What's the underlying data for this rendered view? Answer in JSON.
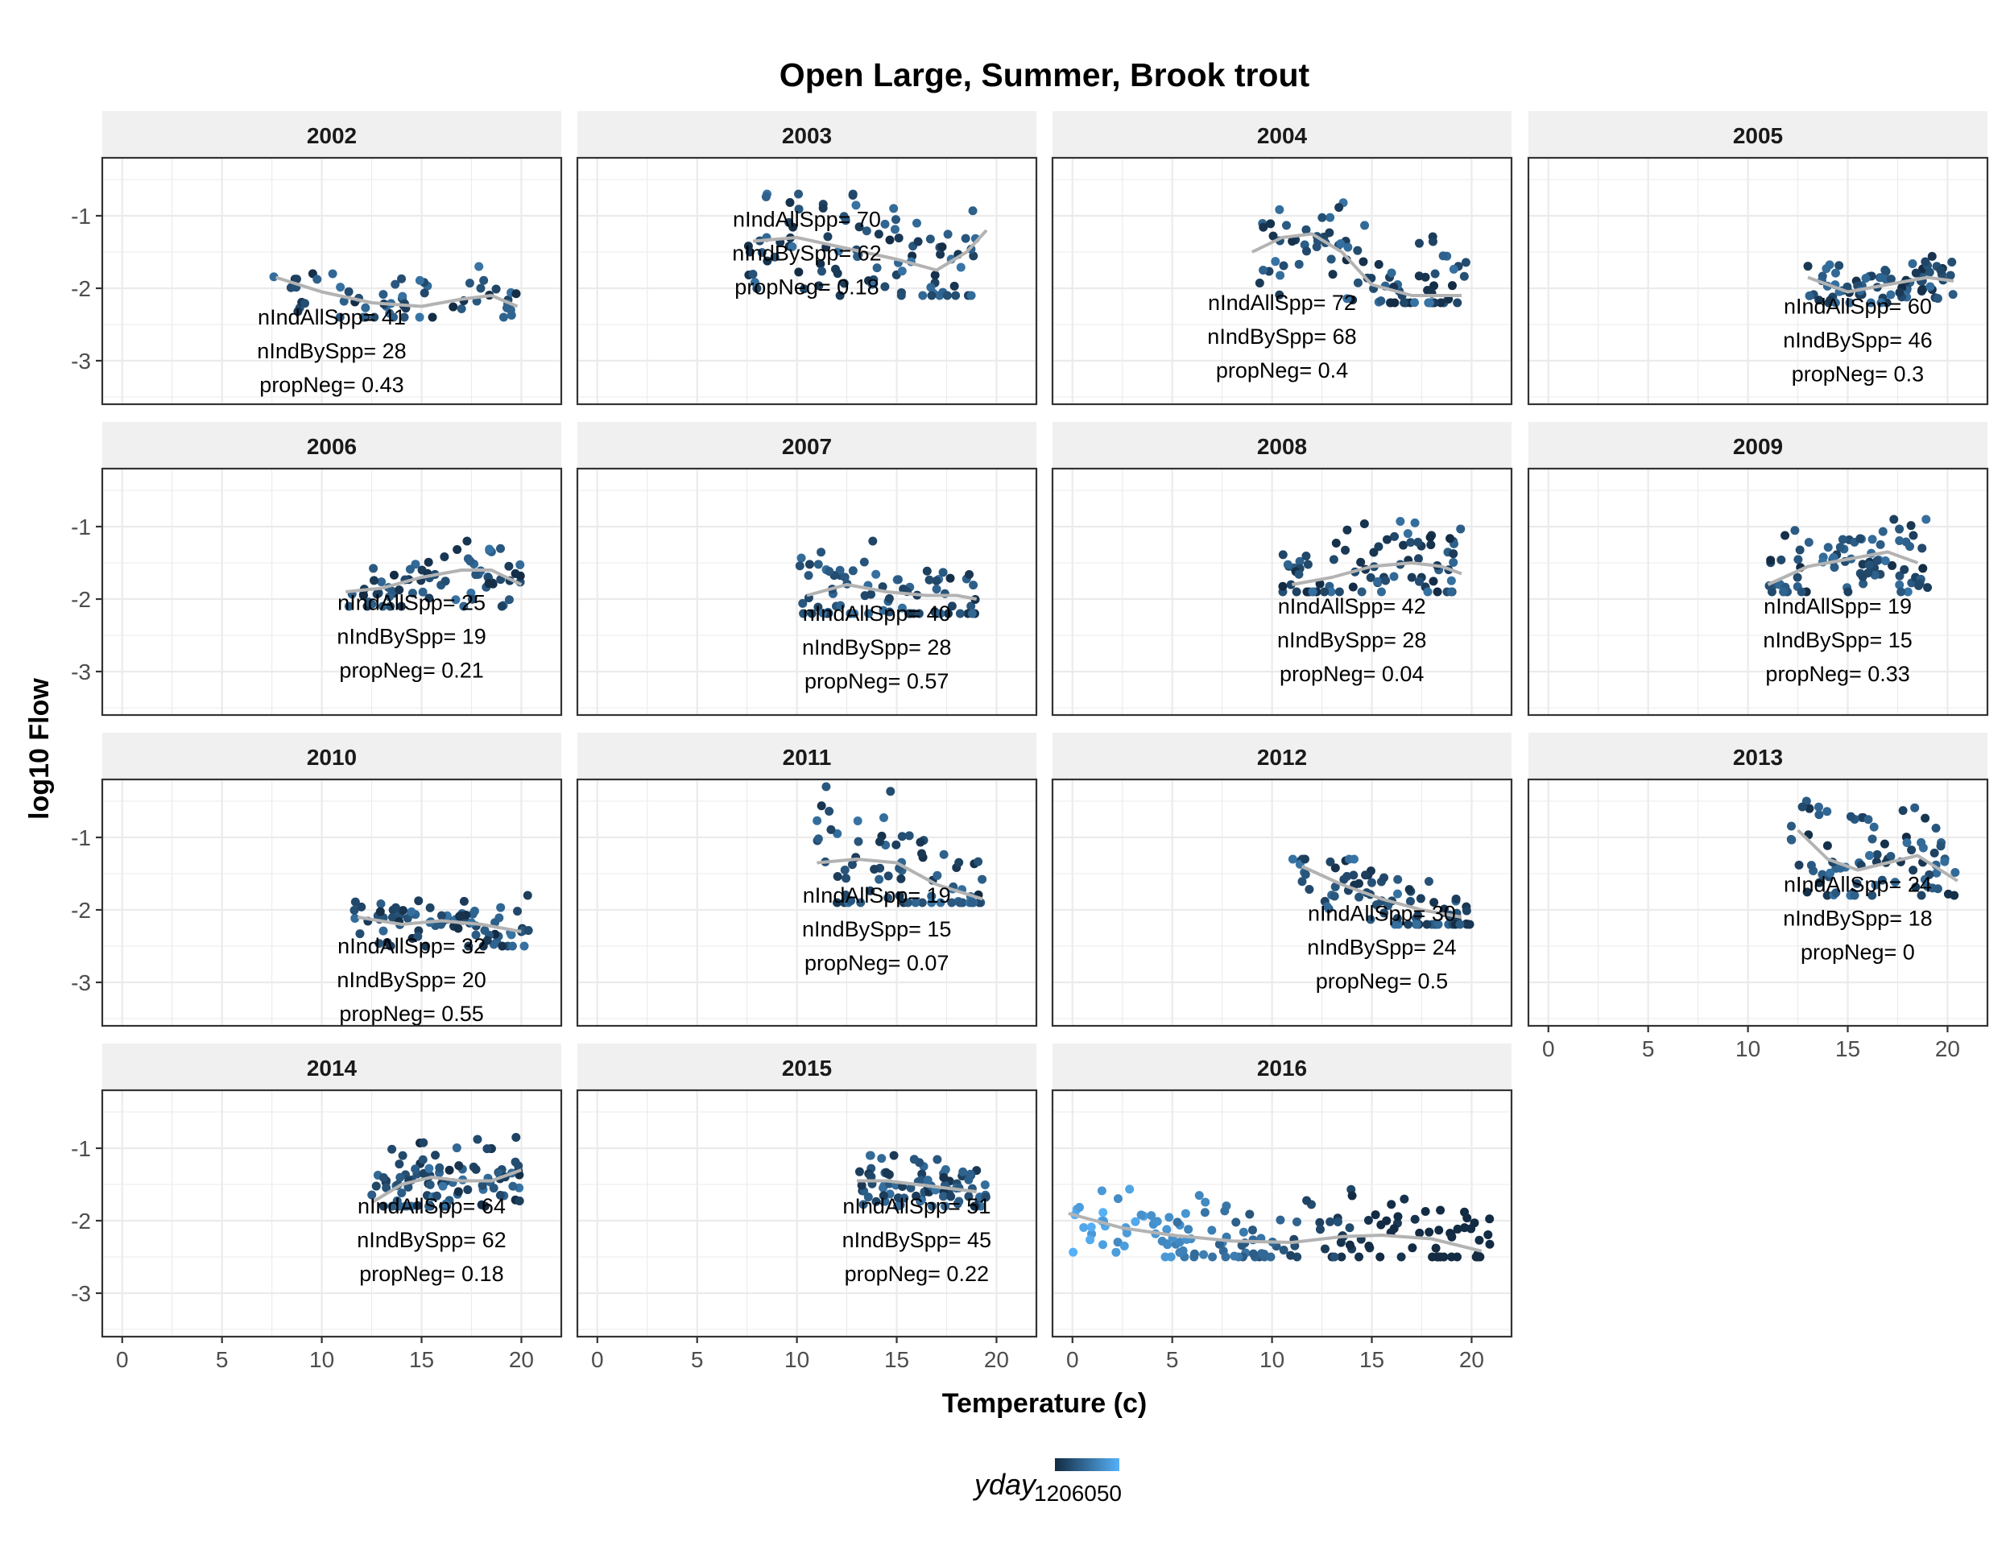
{
  "chart_data": {
    "type": "scatter",
    "title": "Open Large, Summer, Brook trout",
    "xlabel": "Temperature (c)",
    "ylabel": "log10 Flow",
    "xlim": [
      -1,
      22
    ],
    "ylim": [
      -3.6,
      -0.2
    ],
    "x_ticks": [
      0,
      5,
      10,
      15,
      20
    ],
    "y_ticks": [
      -1,
      -2,
      -3
    ],
    "grid": true,
    "legend": {
      "title": "yday",
      "position": "bottom",
      "labels": [
        "1",
        "2",
        "2",
        "6",
        "0",
        "5",
        "0",
        "0",
        "6",
        "0",
        "0"
      ],
      "label_text": "1206050",
      "colors": [
        "#132B43",
        "#56B1F7"
      ]
    },
    "colors": {
      "point_low": "#132B43",
      "point_high": "#56B1F7",
      "smooth": "#b3b3b3",
      "strip": "#f0f0f0",
      "grid": "#ebebeb",
      "panel_border": "#333333"
    },
    "panels": [
      {
        "year": "2002",
        "nIndAllSpp": "nIndAllSpp= 41",
        "nIndBySpp": "nIndBySpp= 28",
        "propNeg": "propNeg= 0.43",
        "label_x": 10.5,
        "label_y": -2.5,
        "cloud": {
          "xmin": 7.5,
          "xmax": 20,
          "ymin": -2.4,
          "ymax": -1.7,
          "n": 60
        },
        "smooth": [
          [
            7.7,
            -1.85
          ],
          [
            10,
            -2.05
          ],
          [
            12.5,
            -2.2
          ],
          [
            15,
            -2.25
          ],
          [
            17,
            -2.15
          ],
          [
            18.5,
            -2.1
          ],
          [
            19.8,
            -2.25
          ]
        ]
      },
      {
        "year": "2003",
        "nIndAllSpp": "nIndAllSpp= 70",
        "nIndBySpp": "nIndBySpp= 62",
        "propNeg": "propNeg= 0.18",
        "label_x": 10.5,
        "label_y": -1.15,
        "cloud": {
          "xmin": 7.5,
          "xmax": 19.5,
          "ymin": -2.1,
          "ymax": -0.7,
          "n": 95
        },
        "smooth": [
          [
            7.8,
            -1.35
          ],
          [
            10,
            -1.3
          ],
          [
            12.5,
            -1.45
          ],
          [
            15,
            -1.6
          ],
          [
            17,
            -1.75
          ],
          [
            18.5,
            -1.5
          ],
          [
            19.5,
            -1.2
          ]
        ]
      },
      {
        "year": "2004",
        "nIndAllSpp": "nIndAllSpp= 72",
        "nIndBySpp": "nIndBySpp= 68",
        "propNeg": "propNeg= 0.4",
        "label_x": 10.5,
        "label_y": -2.3,
        "cloud": {
          "xmin": 9,
          "xmax": 20,
          "ymin": -2.2,
          "ymax": -0.8,
          "n": 90
        },
        "smooth": [
          [
            9,
            -1.5
          ],
          [
            10.5,
            -1.3
          ],
          [
            12,
            -1.25
          ],
          [
            13.5,
            -1.5
          ],
          [
            15,
            -1.95
          ],
          [
            17,
            -2.1
          ],
          [
            19.5,
            -2.1
          ]
        ]
      },
      {
        "year": "2005",
        "nIndAllSpp": "nIndAllSpp= 60",
        "nIndBySpp": "nIndBySpp= 46",
        "propNeg": "propNeg= 0.3",
        "label_x": 15.5,
        "label_y": -2.35,
        "cloud": {
          "xmin": 13,
          "xmax": 20.5,
          "ymin": -2.2,
          "ymax": -1.55,
          "n": 80
        },
        "smooth": [
          [
            13,
            -1.85
          ],
          [
            15,
            -2.05
          ],
          [
            17,
            -1.95
          ],
          [
            19,
            -1.85
          ],
          [
            20.3,
            -1.9
          ]
        ]
      },
      {
        "year": "2006",
        "nIndAllSpp": "nIndAllSpp= 25",
        "nIndBySpp": "nIndBySpp= 19",
        "propNeg": "propNeg= 0.21",
        "label_x": 14.5,
        "label_y": -2.15,
        "cloud": {
          "xmin": 11,
          "xmax": 20,
          "ymin": -2.1,
          "ymax": -1.2,
          "n": 70
        },
        "smooth": [
          [
            11.2,
            -1.9
          ],
          [
            13,
            -1.85
          ],
          [
            15,
            -1.7
          ],
          [
            17,
            -1.6
          ],
          [
            18.5,
            -1.6
          ],
          [
            20,
            -1.8
          ]
        ]
      },
      {
        "year": "2007",
        "nIndAllSpp": "nIndAllSpp= 40",
        "nIndBySpp": "nIndBySpp= 28",
        "propNeg": "propNeg= 0.57",
        "label_x": 14,
        "label_y": -2.3,
        "cloud": {
          "xmin": 10,
          "xmax": 19,
          "ymin": -2.2,
          "ymax": -1.2,
          "n": 75
        },
        "smooth": [
          [
            10.5,
            -1.95
          ],
          [
            12.5,
            -1.8
          ],
          [
            14.5,
            -1.9
          ],
          [
            16.5,
            -1.95
          ],
          [
            18,
            -1.95
          ],
          [
            19,
            -2.0
          ]
        ]
      },
      {
        "year": "2008",
        "nIndAllSpp": "nIndAllSpp= 42",
        "nIndBySpp": "nIndBySpp= 28",
        "propNeg": "propNeg= 0.04",
        "label_x": 14,
        "label_y": -2.2,
        "cloud": {
          "xmin": 10.5,
          "xmax": 19.5,
          "ymin": -1.9,
          "ymax": -0.8,
          "n": 80
        },
        "smooth": [
          [
            11,
            -1.8
          ],
          [
            13,
            -1.7
          ],
          [
            15,
            -1.55
          ],
          [
            17,
            -1.5
          ],
          [
            18.5,
            -1.55
          ],
          [
            19.5,
            -1.65
          ]
        ]
      },
      {
        "year": "2009",
        "nIndAllSpp": "nIndAllSpp= 19",
        "nIndBySpp": "nIndBySpp= 15",
        "propNeg": "propNeg= 0.33",
        "label_x": 14.5,
        "label_y": -2.2,
        "cloud": {
          "xmin": 11,
          "xmax": 19,
          "ymin": -1.9,
          "ymax": -0.9,
          "n": 80
        },
        "smooth": [
          [
            11,
            -1.8
          ],
          [
            13,
            -1.55
          ],
          [
            15,
            -1.45
          ],
          [
            17,
            -1.35
          ],
          [
            18.5,
            -1.5
          ]
        ]
      },
      {
        "year": "2010",
        "nIndAllSpp": "nIndAllSpp= 32",
        "nIndBySpp": "nIndBySpp= 20",
        "propNeg": "propNeg= 0.55",
        "label_x": 14.5,
        "label_y": -2.6,
        "cloud": {
          "xmin": 11.5,
          "xmax": 20.5,
          "ymin": -2.5,
          "ymax": -1.8,
          "n": 80
        },
        "smooth": [
          [
            11.8,
            -2.1
          ],
          [
            14,
            -2.2
          ],
          [
            16,
            -2.15
          ],
          [
            18,
            -2.2
          ],
          [
            20,
            -2.3
          ]
        ]
      },
      {
        "year": "2011",
        "nIndAllSpp": "nIndAllSpp= 19",
        "nIndBySpp": "nIndBySpp= 15",
        "propNeg": "propNeg= 0.07",
        "label_x": 14,
        "label_y": -1.9,
        "cloud": {
          "xmin": 11,
          "xmax": 19.5,
          "ymin": -1.9,
          "ymax": -0.3,
          "n": 75
        },
        "smooth": [
          [
            11,
            -1.35
          ],
          [
            13,
            -1.3
          ],
          [
            15,
            -1.35
          ],
          [
            17,
            -1.65
          ],
          [
            19.3,
            -1.85
          ]
        ]
      },
      {
        "year": "2012",
        "nIndAllSpp": "nIndAllSpp= 30",
        "nIndBySpp": "nIndBySpp= 24",
        "propNeg": "propNeg= 0.5",
        "label_x": 15.5,
        "label_y": -2.15,
        "cloud": {
          "xmin": 11,
          "xmax": 20,
          "ymin": -2.2,
          "ymax": -1.3,
          "n": 80
        },
        "smooth": [
          [
            11.5,
            -1.4
          ],
          [
            13.5,
            -1.65
          ],
          [
            15.5,
            -1.85
          ],
          [
            17.5,
            -2.0
          ],
          [
            19.5,
            -2.1
          ]
        ]
      },
      {
        "year": "2013",
        "nIndAllSpp": "nIndAllSpp= 24",
        "nIndBySpp": "nIndBySpp= 18",
        "propNeg": "propNeg= 0",
        "label_x": 15.5,
        "label_y": -1.75,
        "cloud": {
          "xmin": 12,
          "xmax": 20.5,
          "ymin": -1.8,
          "ymax": -0.5,
          "n": 80
        },
        "smooth": [
          [
            12.5,
            -0.9
          ],
          [
            14,
            -1.3
          ],
          [
            15.5,
            -1.45
          ],
          [
            17,
            -1.35
          ],
          [
            18.5,
            -1.25
          ],
          [
            20.5,
            -1.6
          ]
        ]
      },
      {
        "year": "2014",
        "nIndAllSpp": "nIndAllSpp= 64",
        "nIndBySpp": "nIndBySpp= 62",
        "propNeg": "propNeg= 0.18",
        "label_x": 15.5,
        "label_y": -1.9,
        "cloud": {
          "xmin": 12.5,
          "xmax": 20,
          "ymin": -1.8,
          "ymax": -0.85,
          "n": 95
        },
        "smooth": [
          [
            12.5,
            -1.75
          ],
          [
            14,
            -1.5
          ],
          [
            15.5,
            -1.4
          ],
          [
            17,
            -1.45
          ],
          [
            18.5,
            -1.45
          ],
          [
            20,
            -1.3
          ]
        ]
      },
      {
        "year": "2015",
        "nIndAllSpp": "nIndAllSpp= 51",
        "nIndBySpp": "nIndBySpp= 45",
        "propNeg": "propNeg= 0.22",
        "label_x": 16,
        "label_y": -1.9,
        "cloud": {
          "xmin": 13,
          "xmax": 19.5,
          "ymin": -1.8,
          "ymax": -1.1,
          "n": 85
        },
        "smooth": [
          [
            13,
            -1.45
          ],
          [
            14.5,
            -1.45
          ],
          [
            16,
            -1.5
          ],
          [
            17.5,
            -1.55
          ],
          [
            19,
            -1.6
          ]
        ]
      },
      {
        "year": "2016",
        "nIndAllSpp": "",
        "nIndBySpp": "",
        "propNeg": "",
        "label_x": 0,
        "label_y": 0,
        "cloud": {
          "xmin": 0,
          "xmax": 21,
          "ymin": -2.5,
          "ymax": -1.4,
          "n": 160
        },
        "smooth": [
          [
            -0.2,
            -1.9
          ],
          [
            2.5,
            -2.1
          ],
          [
            5,
            -2.2
          ],
          [
            8,
            -2.28
          ],
          [
            11,
            -2.3
          ],
          [
            13.5,
            -2.22
          ],
          [
            15.5,
            -2.2
          ],
          [
            18,
            -2.25
          ],
          [
            20.5,
            -2.42
          ]
        ]
      }
    ]
  }
}
